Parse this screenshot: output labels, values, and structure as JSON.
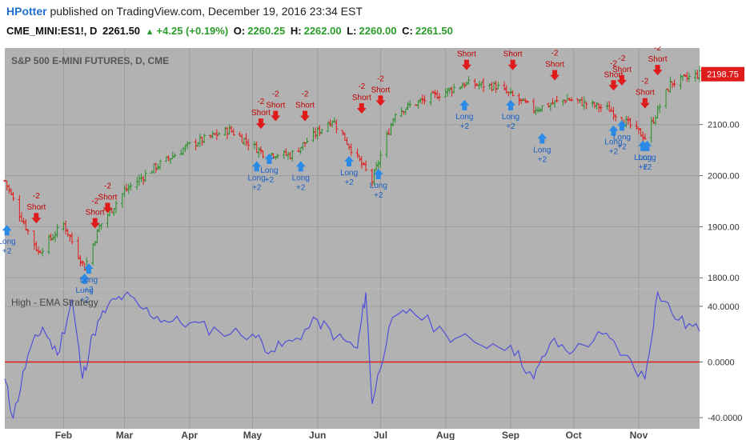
{
  "header": {
    "author": "HPotter",
    "published_text": "published on TradingView.com, December 19, 2016 23:34 EST",
    "symbol": "CME_MINI:ES1!, D",
    "last": "2261.50",
    "change": "+4.25 (+0.19%)",
    "o_label": "O:",
    "o_value": "2260.25",
    "h_label": "H:",
    "h_value": "2262.00",
    "l_label": "L:",
    "l_value": "2260.00",
    "c_label": "C:",
    "c_value": "2261.50"
  },
  "colors": {
    "pane_bg": "#b2b2b2",
    "grid": "#9c9c9c",
    "up_bar": "#2a8f2a",
    "down_bar": "#e01b1b",
    "indicator": "#5050d8",
    "zero_line": "#e01b1b",
    "long_arrow": "#2b8ae6",
    "short_arrow": "#e01b1b",
    "price_tag": "#e01b1b"
  },
  "chart_data": [
    {
      "type": "ohlc",
      "title": "S&P 500 E-MINI FUTURES, D, CME",
      "ylim": [
        1780,
        2250
      ],
      "y_ticks": [
        "2100.00",
        "2000.00",
        "1900.00",
        "1800.00"
      ],
      "y_tick_values": [
        2100,
        2000,
        1900,
        1800
      ],
      "last_price_label": "2198.75",
      "last_price_value": 2198.75,
      "x_labels": [
        "Feb",
        "Mar",
        "Apr",
        "May",
        "Jun",
        "Jul",
        "Aug",
        "Sep",
        "Oct",
        "Nov"
      ],
      "x_label_dates": [
        "2016-02-01",
        "2016-03-01",
        "2016-04-01",
        "2016-05-01",
        "2016-06-01",
        "2016-07-01",
        "2016-08-01",
        "2016-09-01",
        "2016-10-01",
        "2016-11-01"
      ],
      "date_range": [
        "2016-01-04",
        "2016-11-30"
      ],
      "closes": [
        {
          "date": "2016-01-04",
          "value": 1990
        },
        {
          "date": "2016-01-11",
          "value": 1925
        },
        {
          "date": "2016-01-20",
          "value": 1850
        },
        {
          "date": "2016-02-01",
          "value": 1905
        },
        {
          "date": "2016-02-11",
          "value": 1820
        },
        {
          "date": "2016-02-18",
          "value": 1900
        },
        {
          "date": "2016-03-01",
          "value": 1970
        },
        {
          "date": "2016-03-15",
          "value": 2015
        },
        {
          "date": "2016-04-01",
          "value": 2060
        },
        {
          "date": "2016-04-20",
          "value": 2090
        },
        {
          "date": "2016-05-06",
          "value": 2045
        },
        {
          "date": "2016-05-19",
          "value": 2040
        },
        {
          "date": "2016-06-08",
          "value": 2110
        },
        {
          "date": "2016-06-27",
          "value": 1990
        },
        {
          "date": "2016-07-08",
          "value": 2125
        },
        {
          "date": "2016-08-10",
          "value": 2180
        },
        {
          "date": "2016-08-25",
          "value": 2175
        },
        {
          "date": "2016-09-12",
          "value": 2130
        },
        {
          "date": "2016-09-28",
          "value": 2150
        },
        {
          "date": "2016-10-18",
          "value": 2130
        },
        {
          "date": "2016-11-04",
          "value": 2075
        },
        {
          "date": "2016-11-16",
          "value": 2180
        },
        {
          "date": "2016-11-30",
          "value": 2199
        }
      ],
      "signals": [
        {
          "type": "long",
          "label": "Long",
          "qty": "+2",
          "date": "2016-01-05",
          "price": 1905
        },
        {
          "type": "short",
          "label": "Short",
          "qty": "-2",
          "date": "2016-01-19",
          "price": 1905
        },
        {
          "type": "long",
          "label": "Long",
          "qty": "+2",
          "date": "2016-02-11",
          "price": 1810
        },
        {
          "type": "long",
          "label": "Long",
          "qty": "+2",
          "date": "2016-02-13",
          "price": 1830
        },
        {
          "type": "short",
          "label": "Short",
          "qty": "-2",
          "date": "2016-02-16",
          "price": 1895
        },
        {
          "type": "short",
          "label": "Short",
          "qty": "-2",
          "date": "2016-02-22",
          "price": 1925
        },
        {
          "type": "long",
          "label": "Long",
          "qty": "+2",
          "date": "2016-05-03",
          "price": 2030
        },
        {
          "type": "short",
          "label": "Short",
          "qty": "-2",
          "date": "2016-05-05",
          "price": 2090
        },
        {
          "type": "long",
          "label": "Long",
          "qty": "+2",
          "date": "2016-05-09",
          "price": 2045
        },
        {
          "type": "short",
          "label": "Short",
          "qty": "-2",
          "date": "2016-05-12",
          "price": 2105
        },
        {
          "type": "long",
          "label": "Long",
          "qty": "+2",
          "date": "2016-05-24",
          "price": 2030
        },
        {
          "type": "short",
          "label": "Short",
          "qty": "-2",
          "date": "2016-05-26",
          "price": 2105
        },
        {
          "type": "long",
          "label": "Long",
          "qty": "+2",
          "date": "2016-06-16",
          "price": 2040
        },
        {
          "type": "short",
          "label": "Short",
          "qty": "-2",
          "date": "2016-06-22",
          "price": 2120
        },
        {
          "type": "long",
          "label": "Long",
          "qty": "+2",
          "date": "2016-06-30",
          "price": 2015
        },
        {
          "type": "short",
          "label": "Short",
          "qty": "-2",
          "date": "2016-07-01",
          "price": 2135
        },
        {
          "type": "long",
          "label": "Long",
          "qty": "+2",
          "date": "2016-08-10",
          "price": 2150
        },
        {
          "type": "short",
          "label": "Short",
          "qty": "-2",
          "date": "2016-08-11",
          "price": 2205
        },
        {
          "type": "long",
          "label": "Long",
          "qty": "+2",
          "date": "2016-09-01",
          "price": 2150
        },
        {
          "type": "short",
          "label": "Short",
          "qty": "-2",
          "date": "2016-09-02",
          "price": 2205
        },
        {
          "type": "long",
          "label": "Long",
          "qty": "+2",
          "date": "2016-09-16",
          "price": 2085
        },
        {
          "type": "short",
          "label": "Short",
          "qty": "-2",
          "date": "2016-09-22",
          "price": 2185
        },
        {
          "type": "long",
          "label": "Long",
          "qty": "+2",
          "date": "2016-10-20",
          "price": 2100
        },
        {
          "type": "short",
          "label": "Short",
          "qty": "-2",
          "date": "2016-10-20",
          "price": 2165
        },
        {
          "type": "long",
          "label": "Long",
          "qty": "+2",
          "date": "2016-10-24",
          "price": 2110
        },
        {
          "type": "short",
          "label": "Short",
          "qty": "-2",
          "date": "2016-10-24",
          "price": 2175
        },
        {
          "type": "long",
          "label": "Long",
          "qty": "+2",
          "date": "2016-11-03",
          "price": 2070
        },
        {
          "type": "short",
          "label": "Short",
          "qty": "-2",
          "date": "2016-11-04",
          "price": 2130
        },
        {
          "type": "long",
          "label": "Long",
          "qty": "+2",
          "date": "2016-11-05",
          "price": 2070
        },
        {
          "type": "short",
          "label": "Short",
          "qty": "-2",
          "date": "2016-11-10",
          "price": 2195
        }
      ]
    },
    {
      "type": "line",
      "title": "High - EMA Strategy",
      "ylim": [
        -48,
        52
      ],
      "y_ticks": [
        "40.0000",
        "0.0000",
        "-40.0000"
      ],
      "y_tick_values": [
        40,
        0,
        -40
      ],
      "zero_line": 0,
      "date_range": [
        "2016-01-04",
        "2016-11-30"
      ],
      "points": [
        {
          "date": "2016-01-04",
          "value": -12
        },
        {
          "date": "2016-01-08",
          "value": -40
        },
        {
          "date": "2016-01-15",
          "value": 5
        },
        {
          "date": "2016-01-22",
          "value": 25
        },
        {
          "date": "2016-01-29",
          "value": 5
        },
        {
          "date": "2016-02-05",
          "value": 45
        },
        {
          "date": "2016-02-10",
          "value": -12
        },
        {
          "date": "2016-02-15",
          "value": 20
        },
        {
          "date": "2016-02-22",
          "value": 40
        },
        {
          "date": "2016-03-01",
          "value": 48
        },
        {
          "date": "2016-03-10",
          "value": 38
        },
        {
          "date": "2016-03-20",
          "value": 30
        },
        {
          "date": "2016-04-01",
          "value": 28
        },
        {
          "date": "2016-04-15",
          "value": 22
        },
        {
          "date": "2016-05-01",
          "value": 20
        },
        {
          "date": "2016-05-10",
          "value": 8
        },
        {
          "date": "2016-05-20",
          "value": 15
        },
        {
          "date": "2016-06-01",
          "value": 30
        },
        {
          "date": "2016-06-10",
          "value": 18
        },
        {
          "date": "2016-06-20",
          "value": 10
        },
        {
          "date": "2016-06-24",
          "value": 50
        },
        {
          "date": "2016-06-27",
          "value": -30
        },
        {
          "date": "2016-07-05",
          "value": 25
        },
        {
          "date": "2016-07-15",
          "value": 38
        },
        {
          "date": "2016-08-01",
          "value": 20
        },
        {
          "date": "2016-08-15",
          "value": 14
        },
        {
          "date": "2016-09-01",
          "value": 12
        },
        {
          "date": "2016-09-12",
          "value": -12
        },
        {
          "date": "2016-09-20",
          "value": 14
        },
        {
          "date": "2016-10-01",
          "value": 8
        },
        {
          "date": "2016-10-15",
          "value": 20
        },
        {
          "date": "2016-10-25",
          "value": 5
        },
        {
          "date": "2016-11-04",
          "value": -12
        },
        {
          "date": "2016-11-10",
          "value": 50
        },
        {
          "date": "2016-11-20",
          "value": 30
        },
        {
          "date": "2016-11-30",
          "value": 22
        }
      ]
    }
  ]
}
